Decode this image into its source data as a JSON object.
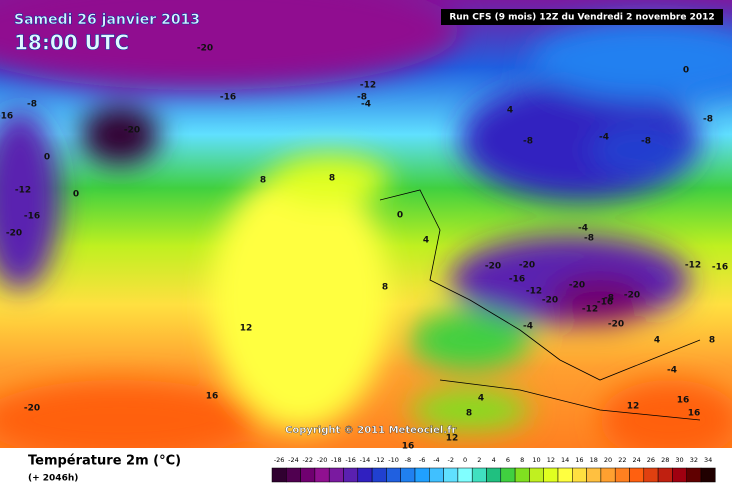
{
  "header": {
    "date": "Samedi 26 janvier 2013",
    "time": "18:00 UTC",
    "run": "Run CFS (9 mois) 12Z du Vendredi 2 novembre 2012"
  },
  "copyright": "Copyright © 2011 Meteociel.fr",
  "footer": {
    "title": "Température 2m (°C)",
    "lead": "(+ 2046h)"
  },
  "colorbar": {
    "labels": [
      -26,
      -24,
      -22,
      -20,
      -18,
      -16,
      -14,
      -12,
      -10,
      -8,
      -6,
      -4,
      -2,
      0,
      2,
      4,
      6,
      8,
      10,
      12,
      14,
      16,
      18,
      20,
      22,
      24,
      26,
      28,
      30,
      32,
      34
    ],
    "colors": [
      "#300030",
      "#500050",
      "#700070",
      "#901090",
      "#7a1aa0",
      "#5a20b0",
      "#3020c0",
      "#2040d0",
      "#2060e0",
      "#2080f0",
      "#20a0ff",
      "#40c0ff",
      "#60e0ff",
      "#80ffff",
      "#40e0c0",
      "#20c080",
      "#40d040",
      "#80e020",
      "#c0f020",
      "#e0ff20",
      "#ffff40",
      "#ffe040",
      "#ffc040",
      "#ffa030",
      "#ff8020",
      "#ff6010",
      "#e04010",
      "#c02010",
      "#a00010",
      "#600000",
      "#200000"
    ]
  },
  "contour_labels": [
    -20,
    -12,
    -8,
    -4,
    -16,
    -8,
    -16,
    -20,
    0,
    4,
    -8,
    -4,
    -8,
    -8,
    0,
    8,
    8,
    -12,
    0,
    -16,
    -20,
    0,
    4,
    -4,
    -8,
    8,
    -20,
    -20,
    -16,
    -12,
    -20,
    -20,
    -8,
    -16,
    -20,
    -12,
    -12,
    -16,
    12,
    -4,
    -20,
    4,
    8,
    -4,
    16,
    -20,
    4,
    8,
    12,
    16,
    16,
    12,
    16
  ]
}
